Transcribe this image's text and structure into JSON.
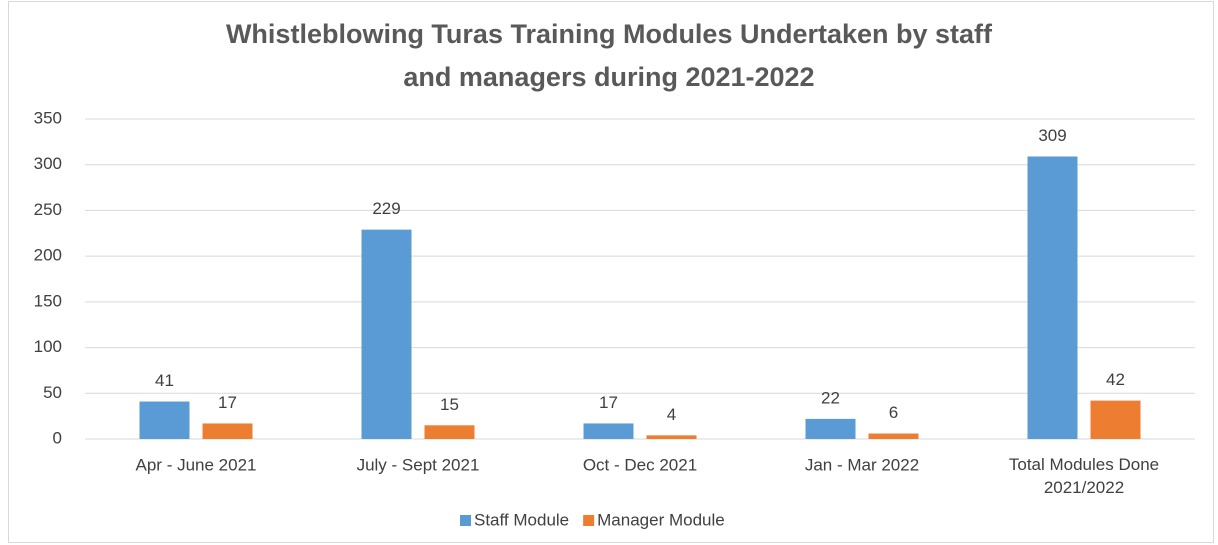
{
  "chart_data": {
    "type": "bar",
    "title": [
      "Whistleblowing Turas Training Modules Undertaken by staff",
      "and managers during 2021-2022"
    ],
    "categories": [
      "Apr - June 2021",
      "July - Sept 2021",
      "Oct - Dec 2021",
      "Jan - Mar 2022",
      "Total Modules Done 2021/2022"
    ],
    "series": [
      {
        "name": "Staff Module",
        "color": "#5b9bd5",
        "values": [
          41,
          229,
          17,
          22,
          309
        ]
      },
      {
        "name": "Manager Module",
        "color": "#ed7d31",
        "values": [
          17,
          15,
          4,
          6,
          42
        ]
      }
    ],
    "ylim": [
      0,
      350
    ],
    "yticks": [
      0,
      50,
      100,
      150,
      200,
      250,
      300,
      350
    ],
    "grid": true,
    "legend": "bottom"
  }
}
